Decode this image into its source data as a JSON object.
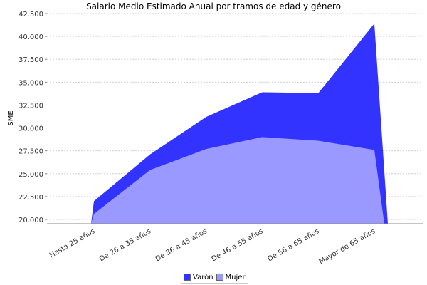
{
  "chart_data": {
    "type": "area",
    "title": "Salario Medio Estimado Anual por tramos de edad y género",
    "xlabel": "",
    "ylabel": "SME",
    "categories": [
      "Hasta 25  años",
      "De 26  a 35  años",
      "De 36  a 45  años",
      "De 46  a 55  años",
      "De 56  a 65  años",
      "Mayor de 65  años"
    ],
    "series": [
      {
        "name": "Varón",
        "color": "#3333ff",
        "values": [
          22000,
          27100,
          31200,
          33900,
          33800,
          41400
        ]
      },
      {
        "name": "Mujer",
        "color": "#9999ff",
        "values": [
          20600,
          25400,
          27700,
          29000,
          28600,
          27600
        ]
      }
    ],
    "ylim": [
      19500,
      42500
    ],
    "yticks": [
      "20.000",
      "22.500",
      "25.000",
      "27.500",
      "30.000",
      "32.500",
      "35.000",
      "37.500",
      "40.000",
      "42.500"
    ],
    "grid": true,
    "legend_position": "bottom"
  }
}
